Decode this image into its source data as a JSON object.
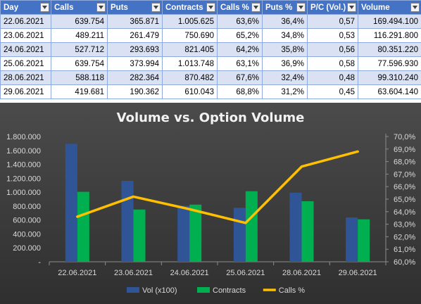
{
  "table": {
    "headers": [
      "Day",
      "Calls",
      "Puts",
      "Contracts",
      "Calls %",
      "Puts %",
      "P/C (Vol.)",
      "Volume"
    ],
    "rows": [
      [
        "22.06.2021",
        "639.754",
        "365.871",
        "1.005.625",
        "63,6%",
        "36,4%",
        "0,57",
        "169.494.100"
      ],
      [
        "23.06.2021",
        "489.211",
        "261.479",
        "750.690",
        "65,2%",
        "34,8%",
        "0,53",
        "116.291.800"
      ],
      [
        "24.06.2021",
        "527.712",
        "293.693",
        "821.405",
        "64,2%",
        "35,8%",
        "0,56",
        "80.351.220"
      ],
      [
        "25.06.2021",
        "639.754",
        "373.994",
        "1.013.748",
        "63,1%",
        "36,9%",
        "0,58",
        "77.596.930"
      ],
      [
        "28.06.2021",
        "588.118",
        "282.364",
        "870.482",
        "67,6%",
        "32,4%",
        "0,48",
        "99.310.240"
      ],
      [
        "29.06.2021",
        "419.681",
        "190.362",
        "610.043",
        "68,8%",
        "31,2%",
        "0,45",
        "63.604.140"
      ]
    ]
  },
  "chart_data": {
    "type": "bar",
    "title": "Volume vs. Option Volume",
    "categories": [
      "22.06.2021",
      "23.06.2021",
      "24.06.2021",
      "25.06.2021",
      "28.06.2021",
      "29.06.2021"
    ],
    "series": [
      {
        "name": "Vol (x100)",
        "type": "bar",
        "axis": "left",
        "color": "#2f5597",
        "values": [
          1694941,
          1162918,
          803512,
          775969,
          993102,
          636041
        ]
      },
      {
        "name": "Contracts",
        "type": "bar",
        "axis": "left",
        "color": "#00b050",
        "values": [
          1005625,
          750690,
          821405,
          1013748,
          870482,
          610043
        ]
      },
      {
        "name": "Calls %",
        "type": "line",
        "axis": "right",
        "color": "#ffc000",
        "values": [
          63.6,
          65.2,
          64.2,
          63.1,
          67.6,
          68.8
        ]
      }
    ],
    "left_axis": {
      "min": 0,
      "max": 1800000,
      "step": 200000,
      "tick_labels": [
        "-",
        "200.000",
        "400.000",
        "600.000",
        "800.000",
        "1.000.000",
        "1.200.000",
        "1.400.000",
        "1.600.000",
        "1.800.000"
      ]
    },
    "right_axis": {
      "min": 60,
      "max": 70,
      "step": 1,
      "tick_labels": [
        "60,0%",
        "61,0%",
        "62,0%",
        "63,0%",
        "64,0%",
        "65,0%",
        "66,0%",
        "67,0%",
        "68,0%",
        "69,0%",
        "70,0%"
      ]
    },
    "grid": false,
    "legend_position": "bottom"
  }
}
